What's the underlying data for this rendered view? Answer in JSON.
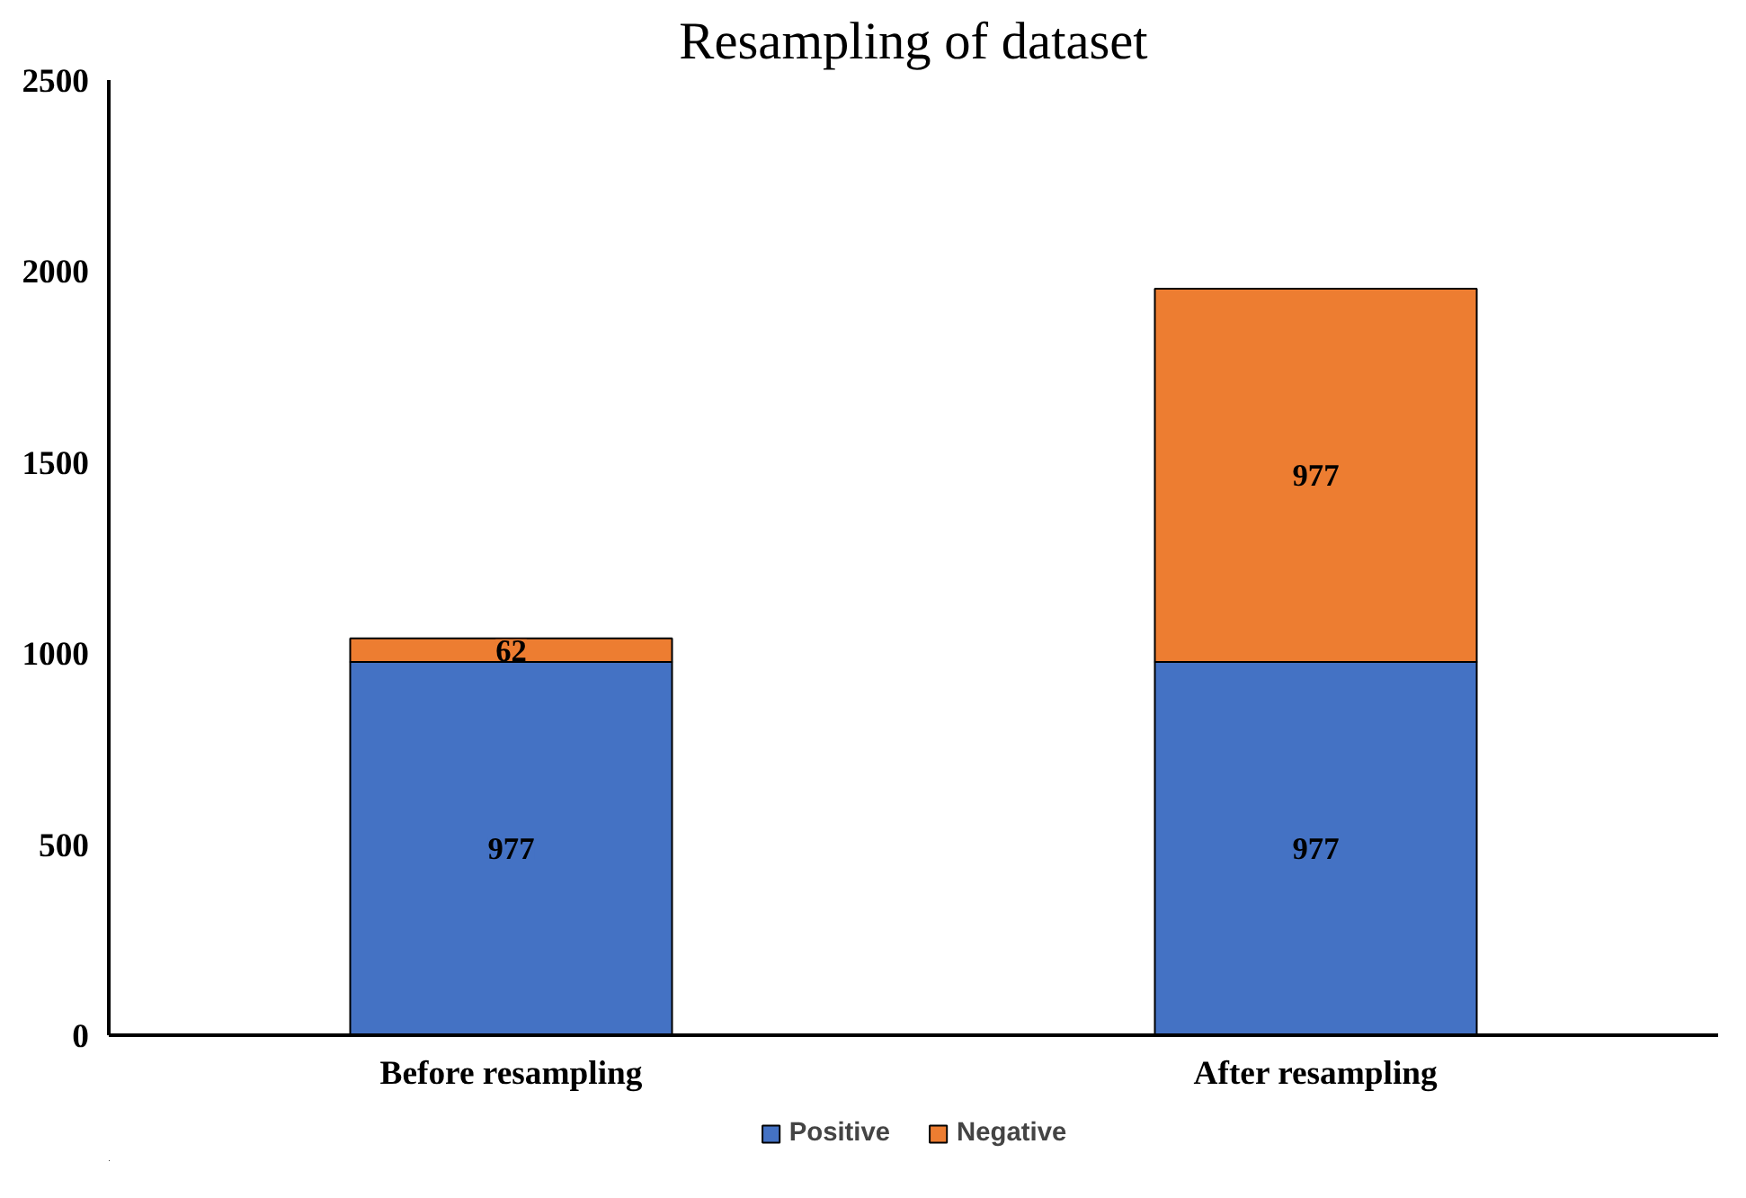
{
  "chart_data": {
    "type": "bar",
    "title": "Resampling of dataset",
    "categories": [
      "Before resampling",
      "After resampling"
    ],
    "stacked": true,
    "series": [
      {
        "name": "Positive",
        "color": "#4472c4",
        "values": [
          977,
          977
        ]
      },
      {
        "name": "Negative",
        "color": "#ed7d31",
        "values": [
          62,
          977
        ]
      }
    ],
    "ylim": [
      0,
      2500
    ],
    "yticks": [
      0,
      500,
      1000,
      1500,
      2000,
      2500
    ],
    "grid": false,
    "legend": "bottom",
    "data_labels": true
  }
}
